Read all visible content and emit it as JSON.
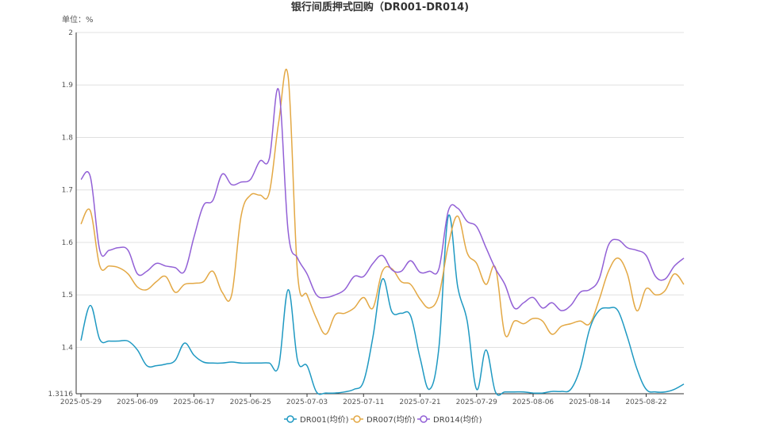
{
  "chart_data": {
    "type": "line",
    "title": "银行间质押式回购（DR001-DR014)",
    "unit_label": "单位：%",
    "ylim": [
      1.3116,
      2
    ],
    "y_ticks": [
      {
        "value": 2,
        "label": "2"
      },
      {
        "value": 1.9,
        "label": "1.9"
      },
      {
        "value": 1.8,
        "label": "1.8"
      },
      {
        "value": 1.7,
        "label": "1.7"
      },
      {
        "value": 1.6,
        "label": "1.6"
      },
      {
        "value": 1.5,
        "label": "1.5"
      },
      {
        "value": 1.4,
        "label": "1.4"
      },
      {
        "value": 1.3116,
        "label": "1.3116"
      }
    ],
    "x": [
      "2025-05-29",
      "2025-05-30",
      "2025-06-03",
      "2025-06-04",
      "2025-06-05",
      "2025-06-06",
      "2025-06-09",
      "2025-06-10",
      "2025-06-11",
      "2025-06-12",
      "2025-06-13",
      "2025-06-16",
      "2025-06-17",
      "2025-06-18",
      "2025-06-19",
      "2025-06-20",
      "2025-06-23",
      "2025-06-24",
      "2025-06-25",
      "2025-06-26",
      "2025-06-27",
      "2025-06-30",
      "2025-07-01",
      "2025-07-02",
      "2025-07-03",
      "2025-07-04",
      "2025-07-07",
      "2025-07-08",
      "2025-07-09",
      "2025-07-10",
      "2025-07-11",
      "2025-07-14",
      "2025-07-15",
      "2025-07-16",
      "2025-07-17",
      "2025-07-18",
      "2025-07-21",
      "2025-07-22",
      "2025-07-23",
      "2025-07-24",
      "2025-07-25",
      "2025-07-28",
      "2025-07-29",
      "2025-07-30",
      "2025-07-31",
      "2025-08-01",
      "2025-08-04",
      "2025-08-05",
      "2025-08-06",
      "2025-08-07",
      "2025-08-08",
      "2025-08-11",
      "2025-08-12",
      "2025-08-13",
      "2025-08-14",
      "2025-08-15",
      "2025-08-18",
      "2025-08-19",
      "2025-08-20",
      "2025-08-21",
      "2025-08-22",
      "2025-08-25",
      "2025-08-26",
      "2025-08-27",
      "2025-08-28"
    ],
    "x_tick_labels": [
      "2025-05-29",
      "2025-06-09",
      "2025-06-17",
      "2025-06-25",
      "2025-07-03",
      "2025-07-11",
      "2025-07-21",
      "2025-07-29",
      "2025-08-06",
      "2025-08-14",
      "2025-08-22"
    ],
    "series": [
      {
        "name": "DR001(均价)",
        "color": "#1f99c2",
        "values": [
          1.413,
          1.48,
          1.415,
          1.412,
          1.412,
          1.412,
          1.395,
          1.365,
          1.365,
          1.368,
          1.375,
          1.408,
          1.385,
          1.372,
          1.37,
          1.37,
          1.372,
          1.37,
          1.37,
          1.37,
          1.37,
          1.365,
          1.51,
          1.375,
          1.365,
          1.315,
          1.313,
          1.313,
          1.315,
          1.32,
          1.335,
          1.42,
          1.53,
          1.468,
          1.465,
          1.46,
          1.38,
          1.32,
          1.4,
          1.65,
          1.515,
          1.45,
          1.32,
          1.395,
          1.315,
          1.315,
          1.315,
          1.315,
          1.313,
          1.313,
          1.316,
          1.316,
          1.32,
          1.36,
          1.435,
          1.47,
          1.475,
          1.47,
          1.42,
          1.36,
          1.32,
          1.315,
          1.315,
          1.32,
          1.33
        ]
      },
      {
        "name": "DR007(均价)",
        "color": "#e3a844",
        "values": [
          1.635,
          1.66,
          1.555,
          1.555,
          1.552,
          1.54,
          1.515,
          1.51,
          1.525,
          1.535,
          1.505,
          1.52,
          1.522,
          1.525,
          1.545,
          1.505,
          1.5,
          1.65,
          1.69,
          1.69,
          1.695,
          1.83,
          1.915,
          1.54,
          1.5,
          1.455,
          1.425,
          1.462,
          1.465,
          1.475,
          1.495,
          1.475,
          1.545,
          1.55,
          1.525,
          1.52,
          1.492,
          1.475,
          1.5,
          1.595,
          1.65,
          1.58,
          1.56,
          1.52,
          1.552,
          1.425,
          1.45,
          1.445,
          1.455,
          1.45,
          1.425,
          1.44,
          1.445,
          1.45,
          1.445,
          1.49,
          1.545,
          1.57,
          1.54,
          1.47,
          1.512,
          1.5,
          1.508,
          1.54,
          1.52
        ]
      },
      {
        "name": "DR014(均价)",
        "color": "#9260d6",
        "values": [
          1.72,
          1.725,
          1.585,
          1.585,
          1.59,
          1.585,
          1.54,
          1.545,
          1.56,
          1.555,
          1.552,
          1.545,
          1.61,
          1.67,
          1.68,
          1.73,
          1.71,
          1.715,
          1.72,
          1.755,
          1.76,
          1.89,
          1.62,
          1.57,
          1.54,
          1.5,
          1.495,
          1.5,
          1.51,
          1.535,
          1.535,
          1.56,
          1.575,
          1.548,
          1.545,
          1.565,
          1.543,
          1.545,
          1.55,
          1.66,
          1.665,
          1.64,
          1.63,
          1.59,
          1.55,
          1.52,
          1.475,
          1.485,
          1.495,
          1.475,
          1.485,
          1.47,
          1.48,
          1.505,
          1.51,
          1.53,
          1.595,
          1.605,
          1.59,
          1.585,
          1.575,
          1.535,
          1.53,
          1.555,
          1.57
        ]
      }
    ]
  }
}
